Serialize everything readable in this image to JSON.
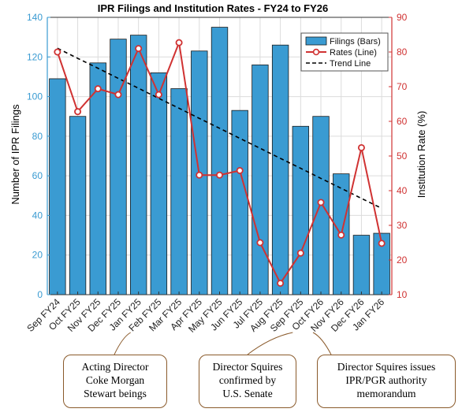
{
  "chart_data": {
    "type": "bar",
    "title": "IPR Filings and Institution Rates - FY24 to FY26",
    "categories": [
      "Sep FY24",
      "Oct FY25",
      "Nov FY25",
      "Dec FY25",
      "Jan FY25",
      "Feb FY25",
      "Mar FY25",
      "Apr FY25",
      "May FY25",
      "Jun FY25",
      "Jul FY25",
      "Aug FY25",
      "Sep FY25",
      "Oct FY26",
      "Nov FY26",
      "Dec FY26",
      "Jan FY26"
    ],
    "ylabel": "Number of IPR Filings",
    "y2label": "Institution Rate (%)",
    "ylim": [
      0,
      140
    ],
    "y2lim": [
      10,
      90
    ],
    "yticks": [
      0,
      20,
      40,
      60,
      80,
      100,
      120,
      140
    ],
    "y2ticks": [
      10,
      20,
      30,
      40,
      50,
      60,
      70,
      80,
      90
    ],
    "grid": true,
    "legend_position": "top-right",
    "series": [
      {
        "name": "Filings (Bars)",
        "type": "bar",
        "axis": "left",
        "color": "#3a9bd2",
        "values": [
          109,
          90,
          117,
          129,
          131,
          112,
          104,
          123,
          135,
          93,
          116,
          126,
          85,
          90,
          61,
          30,
          31
        ]
      },
      {
        "name": "Rates (Line)",
        "type": "line",
        "axis": "right",
        "color": "#d03232",
        "values": [
          80,
          62.8,
          69.4,
          67.7,
          81,
          67.7,
          82.7,
          44.5,
          44.5,
          45.8,
          25,
          13.3,
          22,
          36.6,
          27.2,
          52.4,
          24.8
        ]
      },
      {
        "name": "Trend Line",
        "type": "line",
        "axis": "left",
        "color": "#000000",
        "dashed": true,
        "values": [
          124.4,
          119.3,
          114.3,
          109.2,
          104.2,
          99.1,
          94.1,
          89.0,
          84.0,
          78.9,
          73.9,
          68.8,
          63.8,
          58.7,
          53.7,
          48.6,
          43.6
        ]
      }
    ],
    "annotations": [
      {
        "text": "Acting Director Coke Morgan Stewart beings",
        "lines": [
          "Acting Director",
          "Coke Morgan",
          "Stewart beings"
        ],
        "points_to": "Jan FY25"
      },
      {
        "text": "Director Squires confirmed by U.S. Senate",
        "lines": [
          "Director Squires",
          "confirmed by",
          "U.S. Senate"
        ],
        "points_to": "Sep FY25"
      },
      {
        "text": "Director Squires issues IPR/PGR authority memorandum",
        "lines": [
          "Director Squires issues",
          "IPR/PGR authority",
          "memorandum"
        ],
        "points_to": "Oct FY26"
      }
    ],
    "colors": {
      "left_axis": "#3a9bd2",
      "right_axis": "#d03232",
      "bar_edge": "#1a1a1a"
    }
  }
}
